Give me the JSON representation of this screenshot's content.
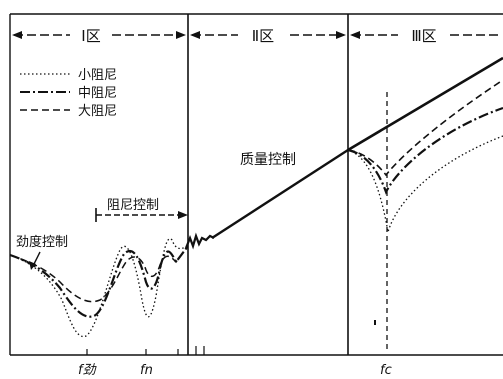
{
  "regions": {
    "r1": "Ⅰ区",
    "r2": "Ⅱ区",
    "r3": "Ⅲ区"
  },
  "legend": [
    {
      "label": "小阻尼",
      "style": "dotted"
    },
    {
      "label": "中阻尼",
      "style": "dash-dot"
    },
    {
      "label": "大阻尼",
      "style": "dashed"
    }
  ],
  "annotations": {
    "damping_control": "阻尼控制",
    "stiffness_control": "劲度控制",
    "mass_control": "质量控制"
  },
  "axis_marks": {
    "f1": "f劲",
    "f2": "fn",
    "fc": "fc"
  }
}
